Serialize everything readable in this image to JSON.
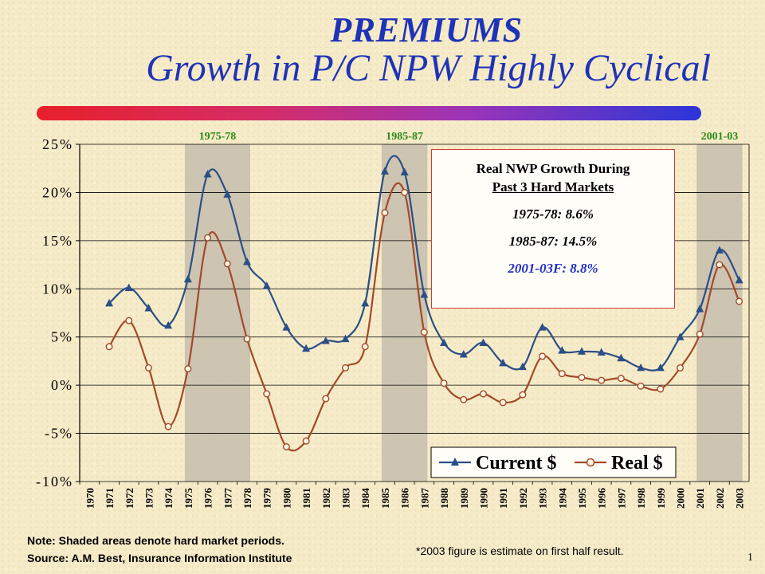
{
  "slide": {
    "title": "PREMIUMS",
    "subtitle": "Growth in P/C NPW Highly Cyclical",
    "note_line1": "Note: Shaded areas denote hard market periods.",
    "note_line2": "Source:  A.M. Best, Insurance Information Institute",
    "estimate_note": "*2003 figure is estimate on first half result.",
    "page_number": "1",
    "accent_gradient": [
      "#e8202a",
      "#9a34b8",
      "#2a36d8"
    ]
  },
  "infobox": {
    "heading_line1": "Real NWP Growth During",
    "heading_line2": "Past 3 Hard Markets",
    "lines": [
      "1975-78: 8.6%",
      "1985-87: 14.5%",
      "2001-03F: 8.8%"
    ],
    "highlight_color": "#2230c8"
  },
  "chart_data": {
    "type": "line",
    "x": [
      "1970",
      "1971",
      "1972",
      "1973",
      "1974",
      "1975",
      "1976",
      "1977",
      "1978",
      "1979",
      "1980",
      "1981",
      "1982",
      "1983",
      "1984",
      "1985",
      "1986",
      "1987",
      "1988",
      "1989",
      "1990",
      "1991",
      "1992",
      "1993",
      "1994",
      "1995",
      "1996",
      "1997",
      "1998",
      "1999",
      "2000",
      "2001",
      "2002",
      "2003"
    ],
    "series": [
      {
        "name": "Current $",
        "color": "#2a4f86",
        "marker": "triangle",
        "values": [
          null,
          8.5,
          10.1,
          8.0,
          6.2,
          11.0,
          21.9,
          19.8,
          12.8,
          10.3,
          6.0,
          3.8,
          4.6,
          4.8,
          8.5,
          22.2,
          22.1,
          9.4,
          4.4,
          3.2,
          4.4,
          2.3,
          1.9,
          6.0,
          3.6,
          3.5,
          3.4,
          2.8,
          1.8,
          1.8,
          5.0,
          7.9,
          14.0,
          10.9
        ]
      },
      {
        "name": "Real $",
        "color": "#a14a2a",
        "marker": "circle",
        "values": [
          null,
          4.0,
          6.7,
          1.8,
          -4.3,
          1.7,
          15.3,
          12.6,
          4.8,
          -0.9,
          -6.4,
          -5.8,
          -1.4,
          1.8,
          4.0,
          17.9,
          20.0,
          5.5,
          0.2,
          -1.5,
          -0.9,
          -1.8,
          -1.0,
          3.0,
          1.2,
          0.8,
          0.5,
          0.7,
          -0.1,
          -0.4,
          1.8,
          5.3,
          12.5,
          8.7
        ]
      }
    ],
    "ylim": [
      -10,
      25
    ],
    "yticks": [
      "25%",
      "20%",
      "15%",
      "10%",
      "5%",
      "0%",
      "-5%",
      "-10%"
    ],
    "shaded_periods": [
      {
        "label": "1975-78",
        "from": "1975",
        "to": "1978"
      },
      {
        "label": "1985-87",
        "from": "1985",
        "to": "1987"
      },
      {
        "label": "2001-03",
        "from": "2001",
        "to": "2003"
      }
    ],
    "shade_color": "#c9c0ae",
    "grid": "horizontal",
    "legend_position": "bottom-right"
  }
}
